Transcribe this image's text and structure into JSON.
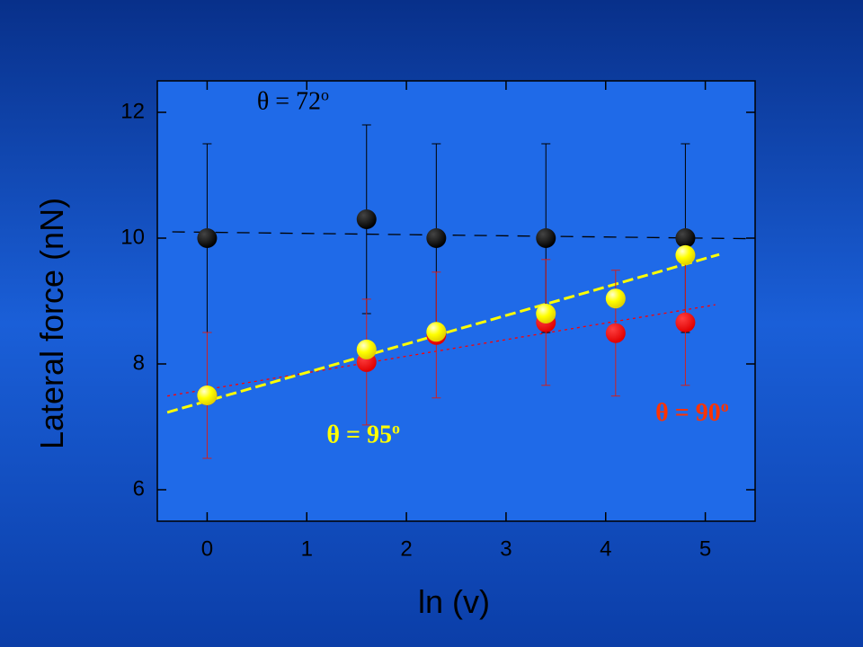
{
  "chart_data": {
    "type": "scatter",
    "x_label": "ln (v)",
    "y_label": "Lateral force (nN)",
    "xlim": [
      -0.5,
      5.5
    ],
    "ylim": [
      5.5,
      12.5
    ],
    "xticks": [
      0,
      1,
      2,
      3,
      4,
      5
    ],
    "yticks": [
      6,
      8,
      10,
      12
    ],
    "series": [
      {
        "label": "θ = 72",
        "sup": "o",
        "color": "#000000",
        "label_color": "#000000",
        "label_x": 0.5,
        "label_y": 12.05,
        "x": [
          0,
          1.6,
          2.3,
          3.4,
          4.8
        ],
        "values": [
          10,
          10.3,
          10,
          10,
          10
        ],
        "errors": [
          1.5,
          1.5,
          1.5,
          1.5,
          1.5
        ],
        "fit": {
          "x": [
            -0.35,
            5.5
          ],
          "values": [
            10.1,
            9.99
          ],
          "dash": "14 10"
        }
      },
      {
        "label": "θ = 90",
        "sup": "o",
        "color": "#ff0000",
        "label_color": "#ff3300",
        "label_x": 4.5,
        "label_y": 7.1,
        "x": [
          0,
          1.6,
          2.3,
          3.4,
          4.1,
          4.8
        ],
        "values": [
          7.5,
          8.03,
          8.46,
          8.66,
          8.49,
          8.66
        ],
        "errors": [
          1,
          1,
          1,
          1,
          1,
          1
        ],
        "fit": {
          "x": [
            -0.4,
            5.1
          ],
          "values": [
            7.49,
            8.94
          ],
          "dash": "3 4"
        }
      },
      {
        "label": "θ = 95",
        "sup": "o",
        "color": "#ffff00",
        "label_color": "#ffff00",
        "label_x": 1.2,
        "label_y": 6.75,
        "x": [
          0,
          1.6,
          2.3,
          3.4,
          4.1,
          4.8
        ],
        "values": [
          7.5,
          8.23,
          8.51,
          8.8,
          9.04,
          9.73
        ],
        "fit": {
          "x": [
            -0.4,
            5.14
          ],
          "values": [
            7.23,
            9.74
          ],
          "dash": "12 5"
        }
      }
    ]
  }
}
